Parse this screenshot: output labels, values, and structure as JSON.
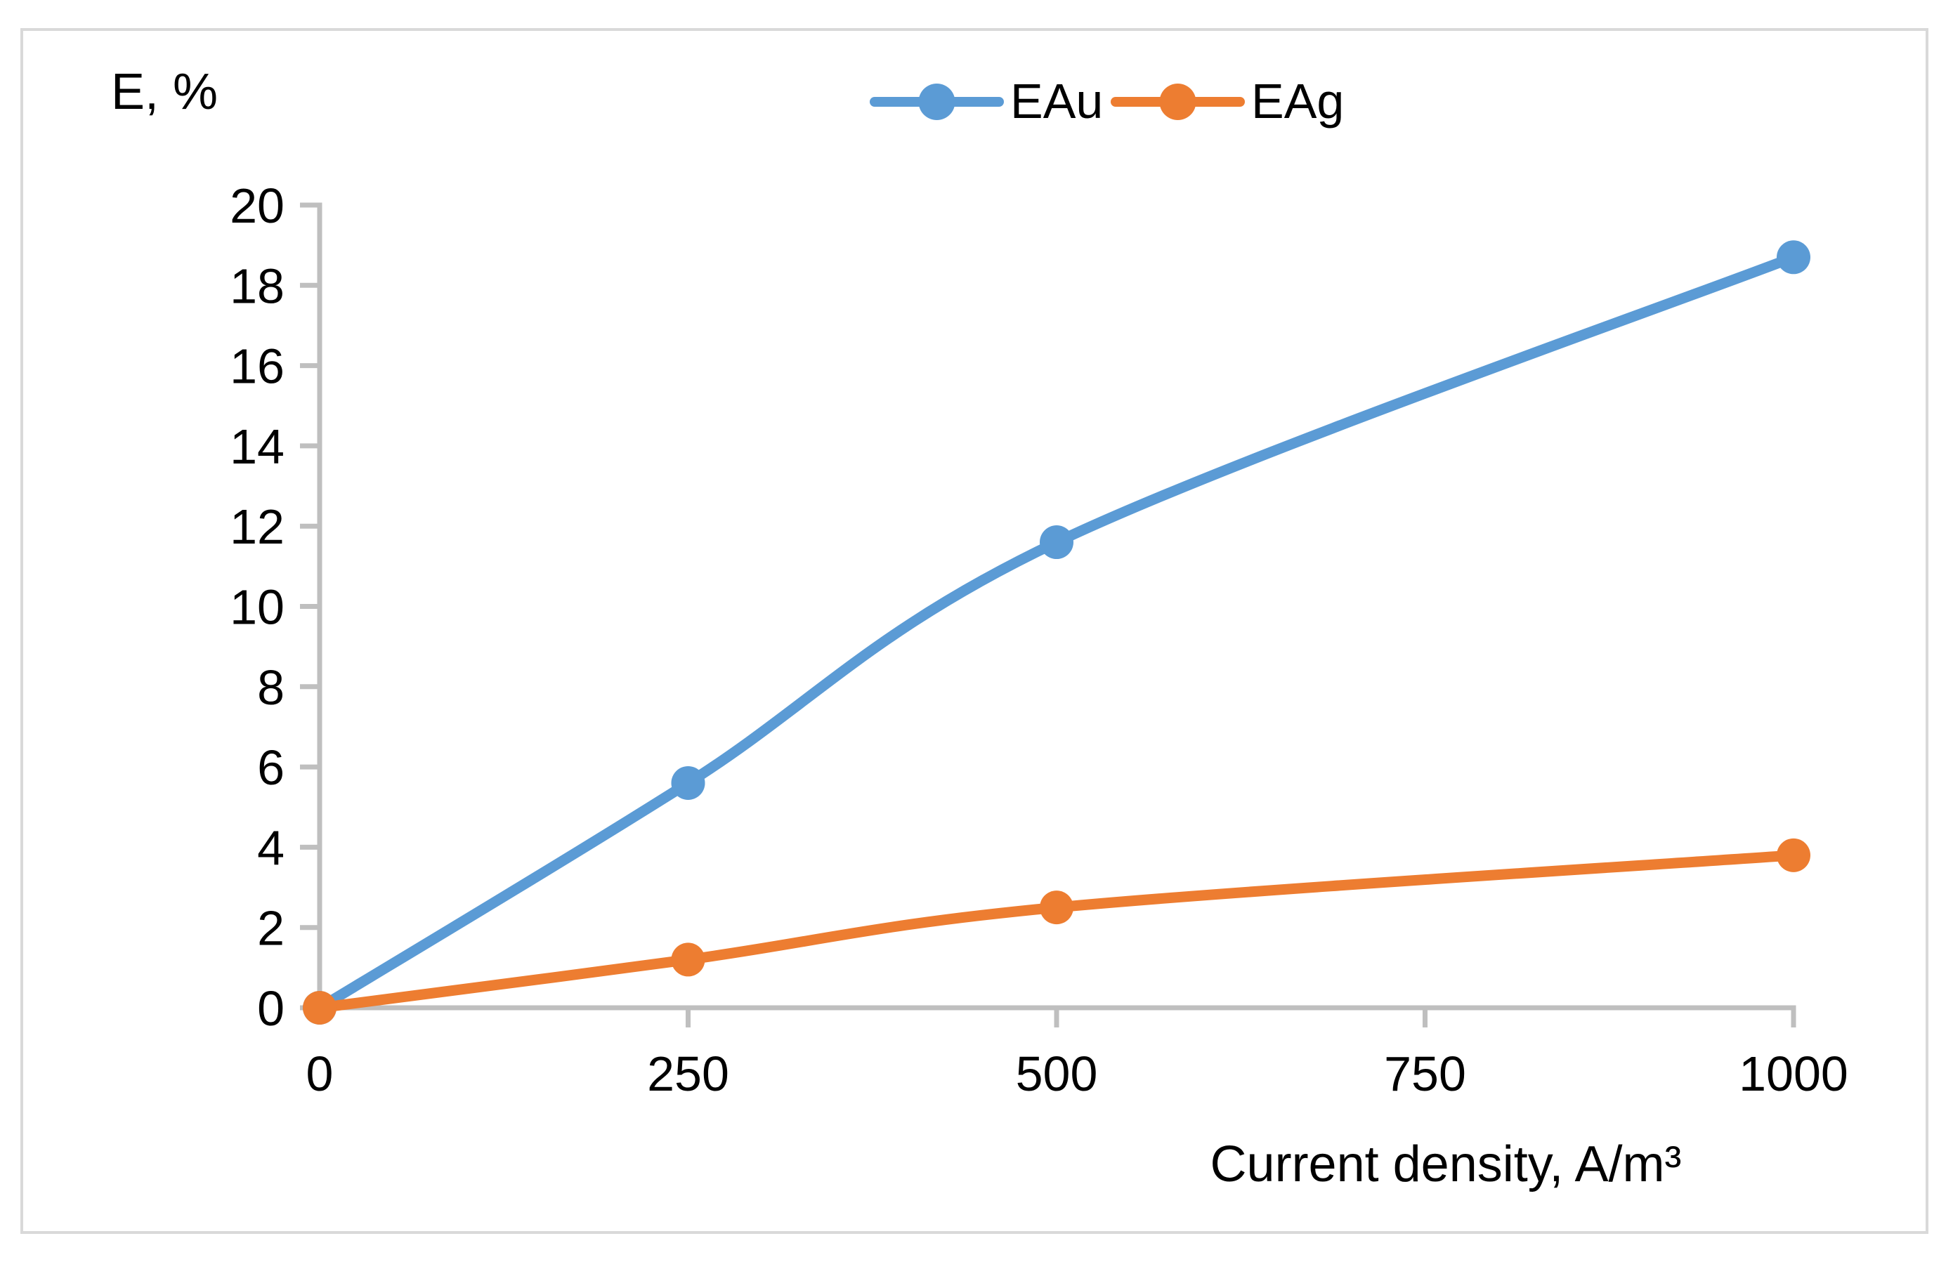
{
  "page": {
    "background": "#FFFFFF",
    "border_color": "#D9D9D9"
  },
  "chart_data": {
    "type": "line",
    "title": "",
    "ylabel": "E, %",
    "xlabel": "Current density, A/m³",
    "x": [
      0,
      250,
      500,
      1000
    ],
    "series": [
      {
        "name": "EAu",
        "color": "#5B9BD5",
        "values": [
          0,
          5.6,
          11.6,
          18.7
        ]
      },
      {
        "name": "EAg",
        "color": "#ED7D31",
        "values": [
          0,
          1.2,
          2.5,
          3.8
        ]
      }
    ],
    "legend": [
      "EAu",
      "EAg"
    ],
    "legend_position": "top-center",
    "x_ticks": [
      0,
      250,
      500,
      750,
      1000
    ],
    "y_ticks": [
      0,
      2,
      4,
      6,
      8,
      10,
      12,
      14,
      16,
      18,
      20
    ],
    "xlim": [
      0,
      1000
    ],
    "ylim": [
      0,
      20
    ],
    "grid": false,
    "smooth_lines": true,
    "marker": "circle",
    "axis_color": "#BFBFBF",
    "text_color": "#000000"
  }
}
